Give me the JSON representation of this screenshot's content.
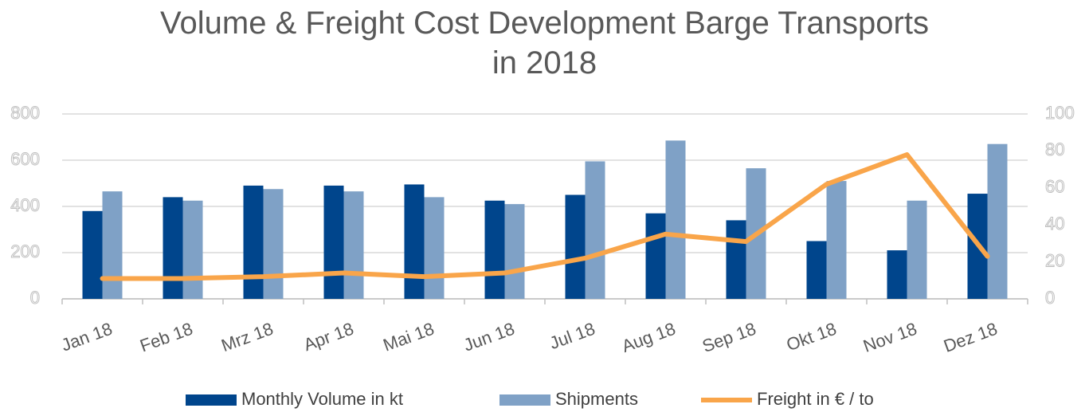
{
  "chart_data": {
    "type": "bar-line",
    "title": "Volume & Freight Cost Development Barge Transports\nin 2018",
    "categories": [
      "Jan 18",
      "Feb 18",
      "Mrz 18",
      "Apr 18",
      "Mai 18",
      "Jun 18",
      "Jul 18",
      "Aug 18",
      "Sep 18",
      "Okt 18",
      "Nov 18",
      "Dez 18"
    ],
    "series": [
      {
        "name": "Monthly Volume in kt",
        "type": "bar",
        "color": "#00458c",
        "values": [
          380,
          440,
          490,
          490,
          495,
          425,
          450,
          370,
          340,
          250,
          210,
          455
        ]
      },
      {
        "name": "Shipments",
        "type": "bar",
        "color": "#7fa1c6",
        "values": [
          465,
          425,
          475,
          465,
          440,
          410,
          595,
          685,
          565,
          510,
          425,
          670
        ]
      },
      {
        "name": "Freight in € / to",
        "type": "line",
        "axis": "y2",
        "color": "#f9a54a",
        "values": [
          11,
          11,
          12,
          14,
          12,
          14,
          22,
          35,
          31,
          62,
          78,
          23
        ]
      }
    ],
    "ylim": [
      0,
      800
    ],
    "yticks": [
      0,
      200,
      400,
      600,
      800
    ],
    "y2lim": [
      0,
      100
    ],
    "y2ticks": [
      0,
      20,
      40,
      60,
      80,
      100
    ],
    "grid": true,
    "legend": "bottom"
  }
}
